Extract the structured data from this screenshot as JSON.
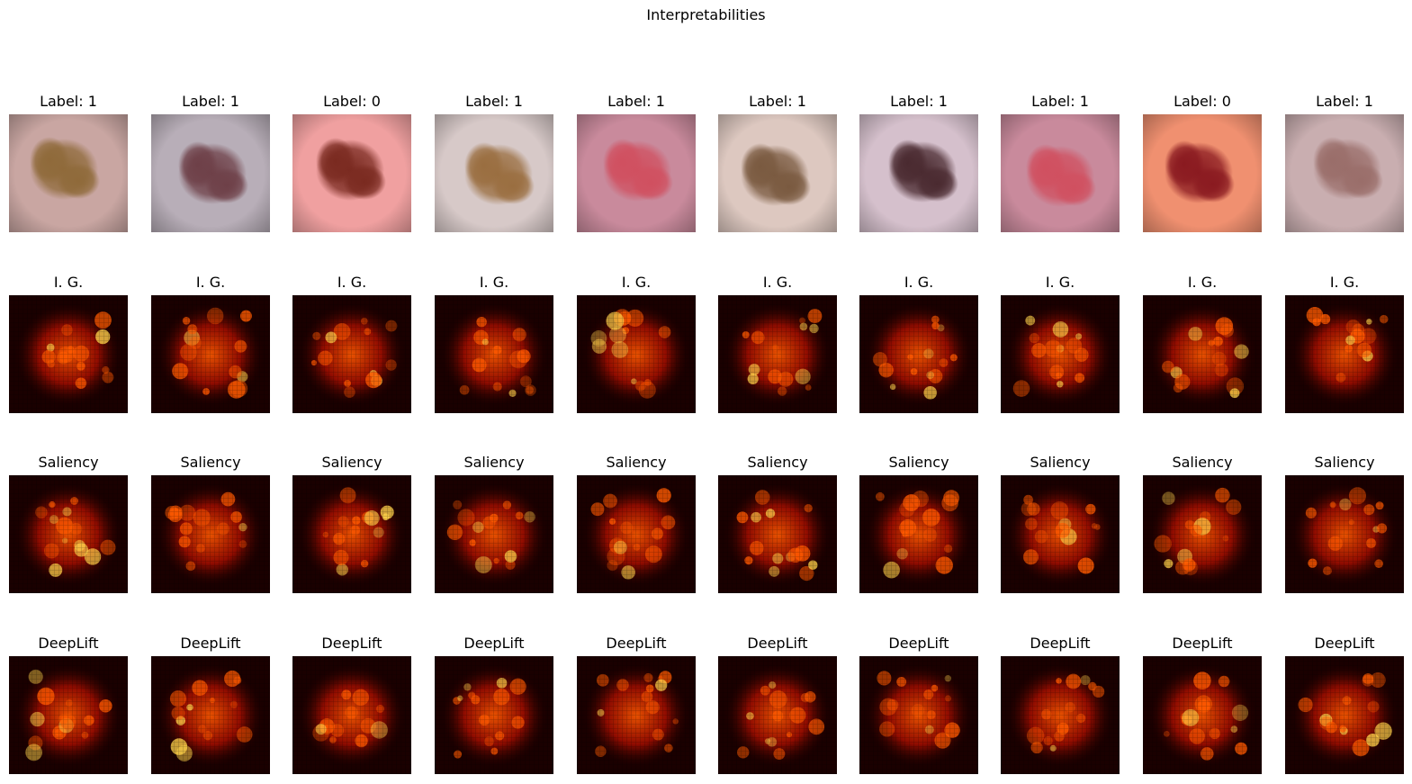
{
  "figure": {
    "title": "Interpretabilities",
    "rows": [
      {
        "kind": "image",
        "titles": [
          "Label: 1",
          "Label: 1",
          "Label: 0",
          "Label: 1",
          "Label: 1",
          "Label: 1",
          "Label: 1",
          "Label: 1",
          "Label: 0",
          "Label: 1"
        ]
      },
      {
        "kind": "heatmap",
        "titles": [
          "I. G.",
          "I. G.",
          "I. G.",
          "I. G.",
          "I. G.",
          "I. G.",
          "I. G.",
          "I. G.",
          "I. G.",
          "I. G."
        ]
      },
      {
        "kind": "heatmap",
        "titles": [
          "Saliency",
          "Saliency",
          "Saliency",
          "Saliency",
          "Saliency",
          "Saliency",
          "Saliency",
          "Saliency",
          "Saliency",
          "Saliency"
        ]
      },
      {
        "kind": "heatmap",
        "titles": [
          "DeepLift",
          "DeepLift",
          "DeepLift",
          "DeepLift",
          "DeepLift",
          "DeepLift",
          "DeepLift",
          "DeepLift",
          "DeepLift",
          "DeepLift"
        ]
      }
    ],
    "images": [
      {
        "skin": "#c9a6a2",
        "lesion": "#8f6a3a"
      },
      {
        "skin": "#b8aeb8",
        "lesion": "#6e4048"
      },
      {
        "skin": "#f0a0a0",
        "lesion": "#7a2a20"
      },
      {
        "skin": "#d7c9c8",
        "lesion": "#9a6e40"
      },
      {
        "skin": "#c98a9c",
        "lesion": "#d05060"
      },
      {
        "skin": "#ddc8c0",
        "lesion": "#7a5a40"
      },
      {
        "skin": "#d5c0cc",
        "lesion": "#4a2a30"
      },
      {
        "skin": "#c98a9c",
        "lesion": "#d05060"
      },
      {
        "skin": "#f09070",
        "lesion": "#8a1a20"
      },
      {
        "skin": "#c9aeb0",
        "lesion": "#9a6e6a"
      }
    ],
    "colors": {
      "heat_dark": "#1a0000",
      "heat_mid": "#b81000",
      "heat_hot": "#ff5a00",
      "heat_peak": "#ffd24a"
    }
  }
}
